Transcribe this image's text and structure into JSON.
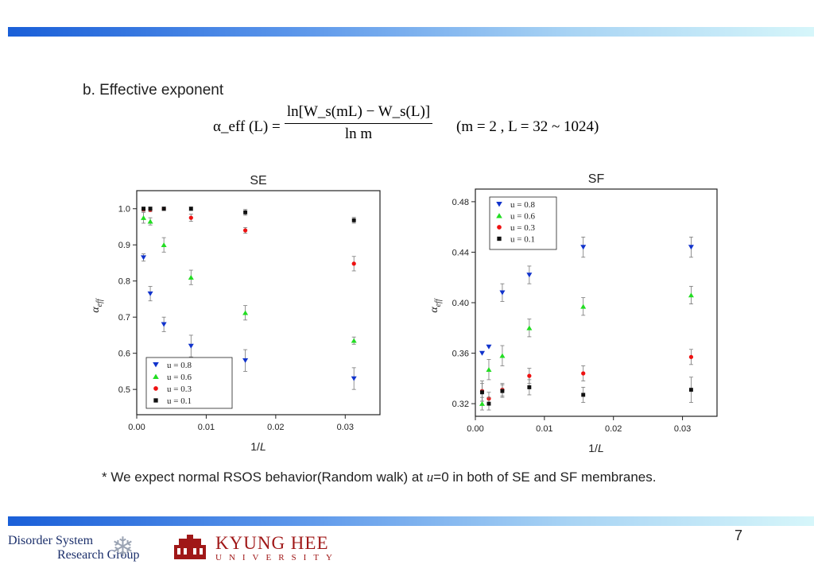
{
  "heading": "b. Effective exponent",
  "formula": {
    "lhs": "α_eff (L) =",
    "numerator": "ln[W_s(mL) − W_s(L)]",
    "denominator": "ln m",
    "condition": "(m = 2 , L = 32 ~ 1024)"
  },
  "note": {
    "prefix": "* We expect normal RSOS behavior(Random walk) at ",
    "var": "u",
    "suffix": "=0 in both of SE and SF membranes."
  },
  "page_number": "7",
  "logos": {
    "dsrg_line1": "Disorder System",
    "dsrg_line2": "Research Group",
    "khu_name": "KYUNG HEE",
    "khu_sub": "UNIVERSITY"
  },
  "colors": {
    "u0.8": "#1133cc",
    "u0.6": "#22dd22",
    "u0.3": "#ee1111",
    "u0.1": "#111111",
    "bar_start": "#1a5fd8",
    "bar_end": "#d6f6fa"
  },
  "chart_data": [
    {
      "type": "scatter",
      "title": "SE",
      "xlabel": "1/L",
      "ylabel": "α_eff",
      "xlim": [
        0.0,
        0.035
      ],
      "ylim": [
        0.43,
        1.05
      ],
      "xticks": [
        0.0,
        0.01,
        0.02,
        0.03
      ],
      "xtick_labels": [
        "0.00",
        "0.01",
        "0.02",
        "0.03"
      ],
      "yticks": [
        0.5,
        0.6,
        0.7,
        0.8,
        0.9,
        1.0
      ],
      "ytick_labels": [
        "0.5",
        "0.6",
        "0.7",
        "0.8",
        "0.9",
        "1.0"
      ],
      "legend_position": "bottom-left",
      "grid": false,
      "x": [
        0.000977,
        0.001953,
        0.003906,
        0.0078125,
        0.015625,
        0.03125
      ],
      "series": [
        {
          "name": "u = 0.8",
          "marker": "triangle-down",
          "color": "#1133cc",
          "values": [
            0.865,
            0.765,
            0.68,
            0.62,
            0.58,
            0.53
          ],
          "errors": [
            0.01,
            0.02,
            0.02,
            0.03,
            0.03,
            0.03
          ]
        },
        {
          "name": "u = 0.6",
          "marker": "triangle-up",
          "color": "#22dd22",
          "values": [
            0.975,
            0.965,
            0.9,
            0.81,
            0.712,
            0.635
          ],
          "errors": [
            0.015,
            0.01,
            0.02,
            0.02,
            0.02,
            0.01
          ]
        },
        {
          "name": "u = 0.3",
          "marker": "circle",
          "color": "#ee1111",
          "values": [
            0.998,
            0.997,
            1.0,
            0.975,
            0.94,
            0.848
          ],
          "errors": [
            0.005,
            0.005,
            0.005,
            0.01,
            0.008,
            0.02
          ]
        },
        {
          "name": "u = 0.1",
          "marker": "square",
          "color": "#111111",
          "values": [
            1.0,
            1.0,
            1.0,
            1.0,
            0.99,
            0.968
          ],
          "errors": [
            0.005,
            0.005,
            0.005,
            0.005,
            0.008,
            0.008
          ]
        }
      ]
    },
    {
      "type": "scatter",
      "title": "SF",
      "xlabel": "1/L",
      "ylabel": "α_eff",
      "xlim": [
        0.0,
        0.035
      ],
      "ylim": [
        0.31,
        0.49
      ],
      "xticks": [
        0.0,
        0.01,
        0.02,
        0.03
      ],
      "xtick_labels": [
        "0.00",
        "0.01",
        "0.02",
        "0.03"
      ],
      "yticks": [
        0.32,
        0.36,
        0.4,
        0.44,
        0.48
      ],
      "ytick_labels": [
        "0.32",
        "0.36",
        "0.40",
        "0.44",
        "0.48"
      ],
      "legend_position": "top-left",
      "grid": false,
      "x": [
        0.000977,
        0.001953,
        0.003906,
        0.0078125,
        0.015625,
        0.03125
      ],
      "series": [
        {
          "name": "u = 0.8",
          "marker": "triangle-down",
          "color": "#1133cc",
          "values": [
            0.36,
            0.365,
            0.408,
            0.422,
            0.444,
            0.444
          ],
          "errors": [
            0.0,
            0.0,
            0.007,
            0.007,
            0.008,
            0.008
          ]
        },
        {
          "name": "u = 0.6",
          "marker": "triangle-up",
          "color": "#22dd22",
          "values": [
            0.32,
            0.347,
            0.358,
            0.38,
            0.397,
            0.406
          ],
          "errors": [
            0.005,
            0.008,
            0.008,
            0.007,
            0.007,
            0.007
          ]
        },
        {
          "name": "u = 0.3",
          "marker": "circle",
          "color": "#ee1111",
          "values": [
            0.33,
            0.324,
            0.331,
            0.342,
            0.344,
            0.357
          ],
          "errors": [
            0.008,
            0.005,
            0.005,
            0.006,
            0.006,
            0.006
          ]
        },
        {
          "name": "u = 0.1",
          "marker": "square",
          "color": "#111111",
          "values": [
            0.329,
            0.32,
            0.33,
            0.333,
            0.327,
            0.331
          ],
          "errors": [
            0.007,
            0.005,
            0.005,
            0.006,
            0.006,
            0.01
          ]
        }
      ]
    }
  ]
}
